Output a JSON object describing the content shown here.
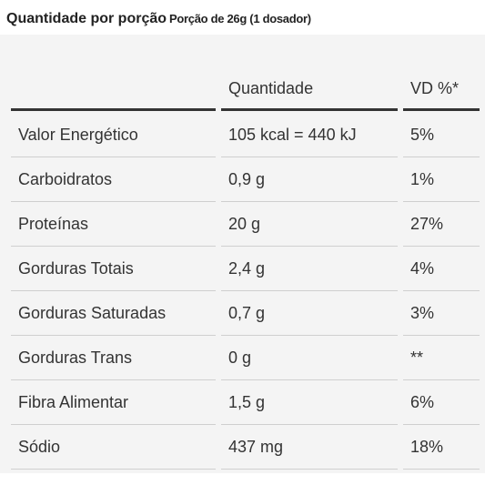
{
  "header": {
    "title": "Quantidade por porção",
    "portion": "Porção de 26g (1 dosador)"
  },
  "table": {
    "columns": [
      "",
      "Quantidade",
      "VD %*"
    ],
    "rows": [
      [
        "Valor Energético",
        "105 kcal = 440 kJ",
        "5%"
      ],
      [
        "Carboidratos",
        "0,9 g",
        "1%"
      ],
      [
        "Proteínas",
        "20 g",
        "27%"
      ],
      [
        "Gorduras Totais",
        "2,4 g",
        "4%"
      ],
      [
        "Gorduras Saturadas",
        "0,7 g",
        "3%"
      ],
      [
        "Gorduras Trans",
        "0 g",
        "**"
      ],
      [
        "Fibra Alimentar",
        "1,5 g",
        "6%"
      ],
      [
        "Sódio",
        "437 mg",
        "18%"
      ]
    ]
  }
}
